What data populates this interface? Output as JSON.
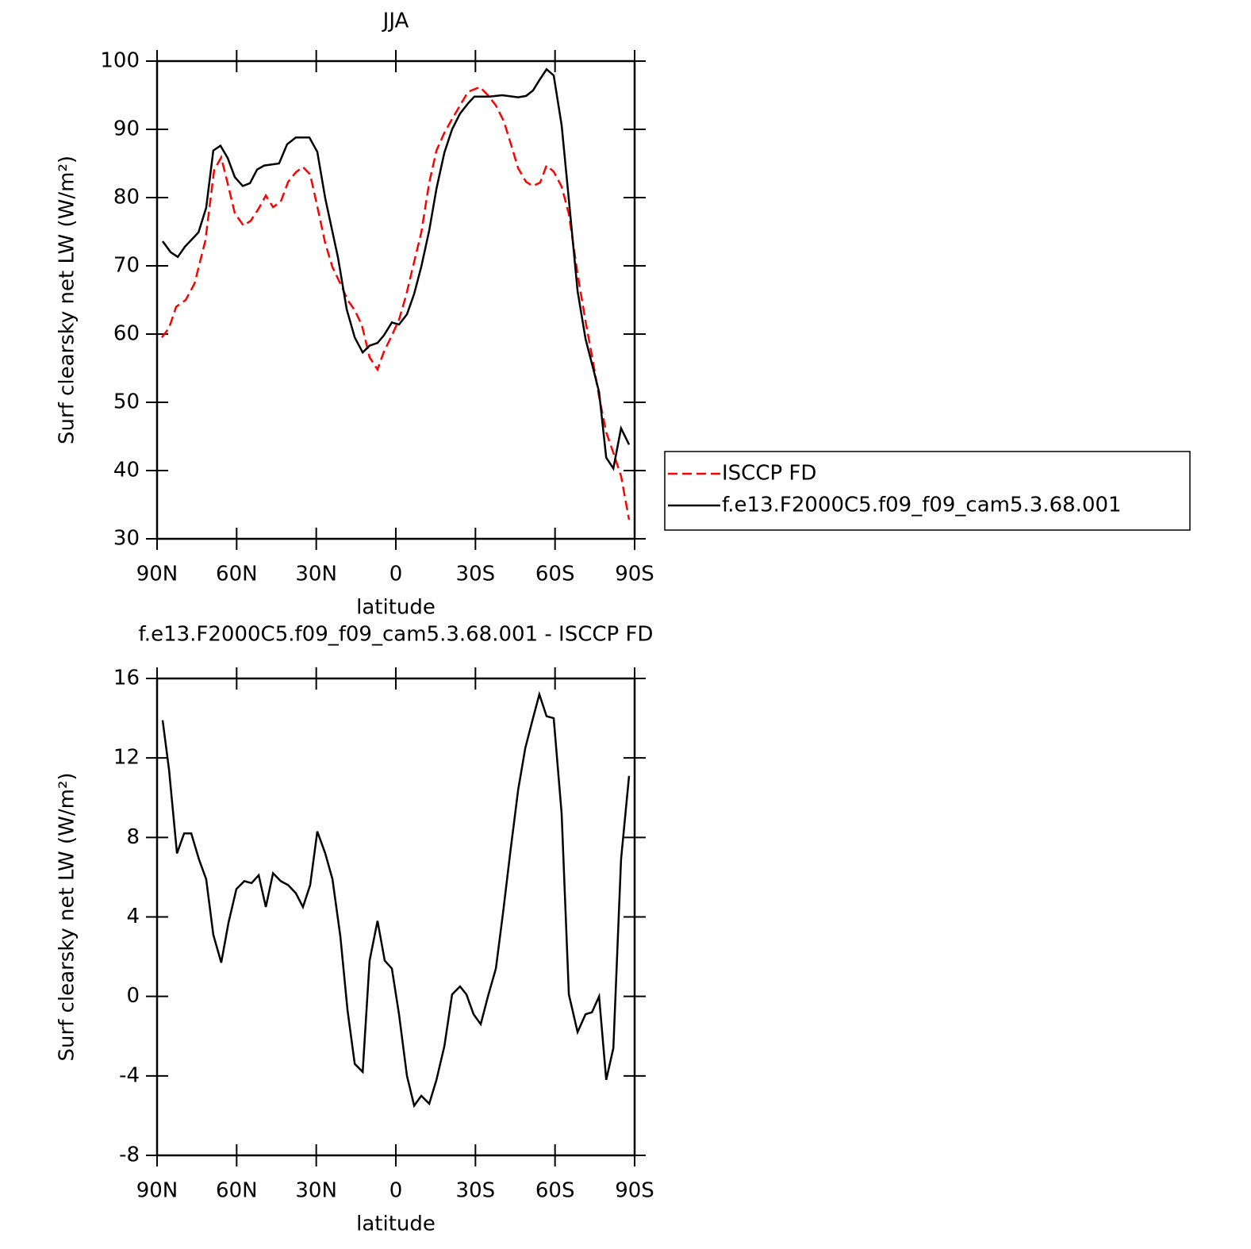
{
  "chart_data": [
    {
      "type": "line",
      "title": "JJA",
      "xlabel": "latitude",
      "ylabel": "Surf clearsky net LW (W/m²)",
      "xlim": [
        90,
        -90
      ],
      "xticks": [
        {
          "value": 90,
          "label": "90N"
        },
        {
          "value": 60,
          "label": "60N"
        },
        {
          "value": 30,
          "label": "30N"
        },
        0,
        {
          "value": -30,
          "label": "30S"
        },
        {
          "value": -60,
          "label": "60S"
        },
        {
          "value": -90,
          "label": "90S"
        }
      ],
      "ylim": [
        30,
        100
      ],
      "yticks": [
        30,
        40,
        50,
        60,
        70,
        80,
        90,
        100
      ],
      "legend": "right",
      "series": [
        {
          "name": "ISCCP FD",
          "color": "#ff0000",
          "dash": true,
          "x": [
            88.2,
            85.5,
            82.8,
            79.2,
            75.9,
            71.8,
            68.5,
            65.8,
            63.1,
            60.7,
            57.4,
            54.7,
            51.7,
            49.0,
            46.3,
            43.4,
            40.6,
            37.7,
            35.0,
            32.3,
            29.6,
            26.6,
            23.9,
            20.9,
            18.2,
            15.5,
            12.8,
            9.9,
            6.9,
            4.5,
            1.5,
            -1.2,
            -3.9,
            -6.9,
            -9.6,
            -12.6,
            -15.3,
            -18.3,
            -21.2,
            -24.2,
            -27.2,
            -31.7,
            -34.7,
            -37.7,
            -40.7,
            -43.7,
            -46.1,
            -49.1,
            -51.7,
            -54.4,
            -56.8,
            -59.5,
            -62.5,
            -65.2,
            -68.5,
            -71.5,
            -74.2,
            -76.6,
            -79.3,
            -82.0,
            -84.9,
            -87.9
          ],
          "values": [
            59.5,
            60.9,
            64.0,
            65.0,
            67.4,
            73.7,
            84.0,
            85.9,
            81.6,
            77.7,
            75.9,
            76.6,
            78.4,
            80.3,
            78.6,
            79.4,
            82.3,
            83.7,
            84.5,
            83.4,
            78.7,
            73.3,
            69.8,
            67.4,
            65.0,
            63.5,
            61.3,
            56.6,
            54.8,
            57.4,
            59.8,
            62.1,
            65.7,
            70.6,
            74.9,
            82.2,
            86.9,
            89.5,
            91.5,
            93.5,
            95.5,
            96.2,
            95.0,
            93.5,
            91.2,
            87.4,
            84.3,
            82.3,
            81.7,
            82.2,
            84.7,
            83.8,
            81.6,
            77.6,
            68.8,
            61.9,
            56.2,
            50.8,
            45.6,
            42.6,
            39.2,
            32.8
          ]
        },
        {
          "name": "f.e13.F2000C5.f09_f09_cam5.3.68.001",
          "color": "#000000",
          "dash": false,
          "x": [
            87.9,
            84.9,
            82.2,
            79.5,
            74.4,
            71.5,
            68.8,
            66.1,
            63.4,
            60.7,
            57.7,
            55.0,
            52.3,
            49.6,
            44.0,
            41.0,
            37.7,
            32.6,
            29.6,
            26.6,
            21.8,
            18.5,
            15.5,
            12.5,
            9.9,
            6.9,
            4.5,
            1.5,
            -1.2,
            -4.2,
            -6.9,
            -9.6,
            -12.6,
            -15.3,
            -18.3,
            -21.2,
            -24.2,
            -27.2,
            -29.6,
            -35.3,
            -40.1,
            -46.1,
            -49.1,
            -51.7,
            -54.1,
            -56.8,
            -59.5,
            -62.5,
            -65.2,
            -68.5,
            -71.5,
            -74.2,
            -76.6,
            -79.3,
            -82.0,
            -84.9,
            -87.9
          ],
          "values": [
            73.6,
            72.0,
            71.3,
            72.8,
            74.9,
            78.5,
            86.9,
            87.6,
            85.8,
            83.0,
            81.7,
            82.1,
            84.1,
            84.7,
            85.0,
            87.8,
            88.8,
            88.8,
            86.7,
            79.9,
            71.2,
            63.6,
            59.5,
            57.3,
            58.3,
            58.7,
            59.8,
            61.7,
            61.4,
            62.9,
            65.9,
            69.9,
            75.2,
            81.3,
            86.6,
            90.0,
            92.3,
            93.8,
            94.8,
            94.8,
            95.0,
            94.7,
            94.9,
            95.7,
            97.2,
            98.8,
            97.9,
            90.6,
            79.7,
            66.3,
            59.3,
            55.2,
            51.5,
            41.9,
            40.3,
            46.2,
            43.8
          ]
        }
      ]
    },
    {
      "type": "line",
      "title": "f.e13.F2000C5.f09_f09_cam5.3.68.001 - ISCCP FD",
      "xlabel": "latitude",
      "ylabel": "Surf clearsky net LW (W/m²)",
      "xlim": [
        90,
        -90
      ],
      "xticks": [
        {
          "value": 90,
          "label": "90N"
        },
        {
          "value": 60,
          "label": "60N"
        },
        {
          "value": 30,
          "label": "30N"
        },
        0,
        {
          "value": -30,
          "label": "30S"
        },
        {
          "value": -60,
          "label": "60S"
        },
        {
          "value": -90,
          "label": "90S"
        }
      ],
      "ylim": [
        -8,
        16
      ],
      "yticks": [
        -8,
        -4,
        0,
        4,
        8,
        12,
        16
      ],
      "series": [
        {
          "color": "#000000",
          "dash": false,
          "x": [
            87.9,
            85.5,
            82.5,
            79.8,
            77.1,
            74.2,
            71.5,
            68.8,
            65.8,
            63.1,
            60.1,
            57.1,
            54.4,
            51.7,
            49.0,
            46.3,
            43.4,
            40.6,
            37.7,
            35.0,
            32.3,
            29.6,
            26.6,
            23.9,
            20.9,
            18.2,
            15.5,
            12.5,
            9.9,
            6.9,
            4.2,
            1.5,
            -1.2,
            -4.2,
            -6.9,
            -9.6,
            -12.6,
            -15.3,
            -18.3,
            -21.2,
            -24.2,
            -26.6,
            -29.3,
            -32.0,
            -34.7,
            -37.7,
            -40.4,
            -43.1,
            -46.1,
            -48.8,
            -51.7,
            -54.1,
            -56.8,
            -59.5,
            -62.5,
            -65.2,
            -68.5,
            -71.5,
            -73.9,
            -76.6,
            -79.3,
            -82.0,
            -84.9,
            -87.9
          ],
          "values": [
            13.9,
            11.4,
            7.2,
            8.2,
            8.2,
            6.9,
            5.9,
            3.1,
            1.7,
            3.7,
            5.4,
            5.8,
            5.7,
            6.1,
            4.5,
            6.2,
            5.8,
            5.6,
            5.2,
            4.5,
            5.6,
            8.3,
            7.2,
            5.9,
            3.0,
            -0.7,
            -3.4,
            -3.8,
            1.8,
            3.8,
            1.8,
            1.4,
            -0.9,
            -4.0,
            -5.5,
            -5.0,
            -5.4,
            -4.2,
            -2.5,
            0.1,
            0.5,
            0.1,
            -0.9,
            -1.4,
            0.0,
            1.4,
            4.2,
            7.2,
            10.4,
            12.5,
            14.0,
            15.2,
            14.1,
            14.0,
            9.2,
            0.1,
            -1.8,
            -0.9,
            -0.8,
            0.0,
            -4.2,
            -2.6,
            6.9,
            11.1
          ]
        }
      ]
    }
  ]
}
